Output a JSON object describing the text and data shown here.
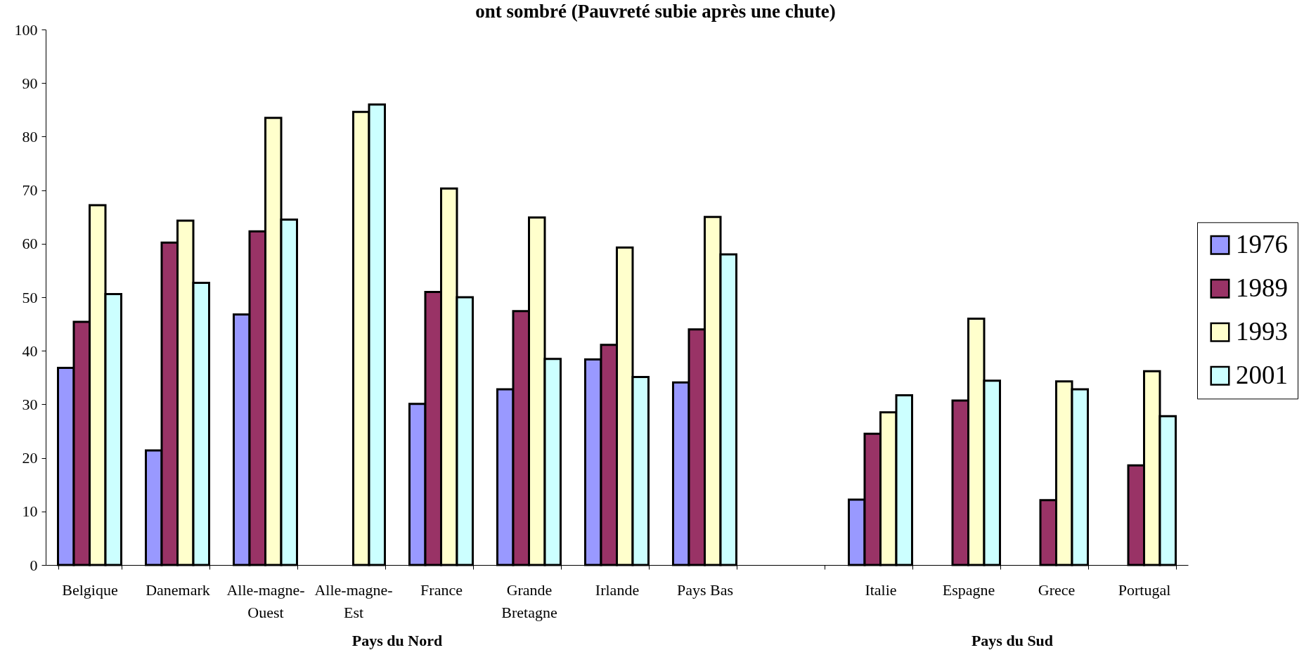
{
  "chart_data": {
    "type": "bar",
    "title": "ont sombré (Pauvreté subie après une chute)",
    "categories": [
      "Belgique",
      "Danemark",
      "Alle-magne-Ouest",
      "Alle-magne-Est",
      "France",
      "Grande Bretagne",
      "Irlande",
      "Pays Bas",
      null,
      "Italie",
      "Espagne",
      "Grece",
      "Portugal"
    ],
    "series": [
      {
        "name": "1976",
        "color": "#9999ff",
        "values": [
          36.8,
          21.4,
          46.8,
          null,
          30.1,
          32.8,
          38.4,
          34.1,
          null,
          12.2,
          null,
          null,
          null
        ]
      },
      {
        "name": "1989",
        "color": "#993366",
        "values": [
          45.4,
          60.2,
          62.3,
          null,
          51.0,
          47.4,
          41.1,
          44.0,
          null,
          24.5,
          30.7,
          12.1,
          18.6
        ]
      },
      {
        "name": "1993",
        "color": "#ffffcc",
        "values": [
          67.2,
          64.3,
          83.5,
          84.6,
          70.3,
          64.9,
          59.3,
          65.0,
          null,
          28.5,
          46.0,
          34.3,
          36.2
        ]
      },
      {
        "name": "2001",
        "color": "#ccffff",
        "values": [
          50.6,
          52.7,
          64.5,
          86.0,
          50.0,
          38.5,
          35.1,
          58.0,
          null,
          31.7,
          34.4,
          32.8,
          27.8
        ]
      }
    ],
    "ylim": [
      0,
      100
    ],
    "yticks": [
      0,
      10,
      20,
      30,
      40,
      50,
      60,
      70,
      80,
      90,
      100
    ],
    "legend": "right",
    "annotations": [
      "Pays du Nord",
      "Pays du Sud"
    ]
  }
}
